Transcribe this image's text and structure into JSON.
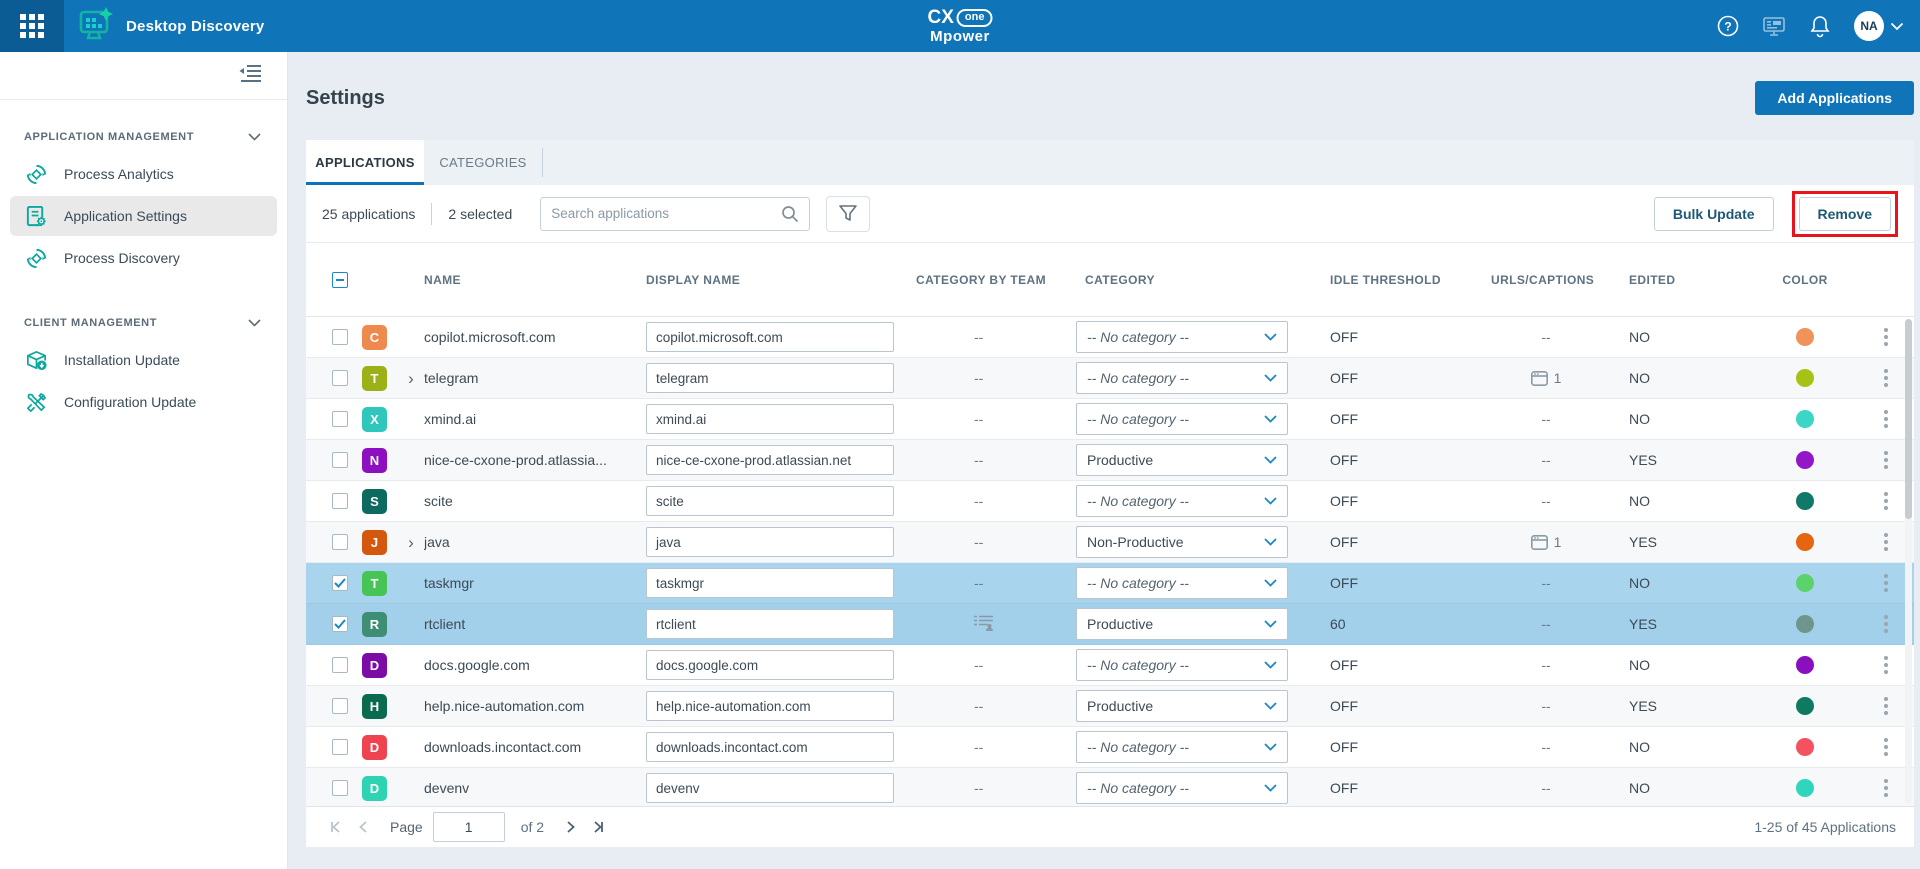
{
  "header": {
    "app_title": "Desktop Discovery",
    "logo": {
      "line1a": "CX",
      "line1b": "one",
      "line2": "Mpower"
    },
    "avatar": "NA",
    "colors": {
      "bar": "#0F74B8",
      "launcher": "#0B5C95"
    }
  },
  "sidebar": {
    "sections": [
      {
        "label": "APPLICATION MANAGEMENT",
        "items": [
          {
            "label": "Process Analytics"
          },
          {
            "label": "Application Settings",
            "active": true
          },
          {
            "label": "Process Discovery"
          }
        ]
      },
      {
        "label": "CLIENT MANAGEMENT",
        "items": [
          {
            "label": "Installation Update"
          },
          {
            "label": "Configuration Update"
          }
        ]
      }
    ]
  },
  "page": {
    "title": "Settings",
    "add_button": "Add Applications"
  },
  "tabs": {
    "applications": "APPLICATIONS",
    "categories": "CATEGORIES"
  },
  "toolbar": {
    "count": "25 applications",
    "selected": "2 selected",
    "search_placeholder": "Search applications",
    "bulk_update": "Bulk Update",
    "remove": "Remove",
    "annotation_color": "#E8131C"
  },
  "table": {
    "columns": [
      "NAME",
      "DISPLAY NAME",
      "CATEGORY BY TEAM",
      "CATEGORY",
      "IDLE THRESHOLD",
      "URLS/CAPTIONS",
      "EDITED",
      "COLOR"
    ],
    "rows": [
      {
        "letter": "C",
        "badge_color": "#EE8A4D",
        "name": "copilot.microsoft.com",
        "expandable": false,
        "display_name": "copilot.microsoft.com",
        "team": "--",
        "team_icon": false,
        "category": "-- No category --",
        "category_placeholder": true,
        "idle": "OFF",
        "urls_count": null,
        "edited": "NO",
        "dot_color": "#F0935B",
        "selected": false
      },
      {
        "letter": "T",
        "badge_color": "#9CB117",
        "name": "telegram",
        "expandable": true,
        "display_name": "telegram",
        "team": "--",
        "team_icon": false,
        "category": "-- No category --",
        "category_placeholder": true,
        "idle": "OFF",
        "urls_count": "1",
        "edited": "NO",
        "dot_color": "#A6C217",
        "selected": false
      },
      {
        "letter": "X",
        "badge_color": "#2FC7BC",
        "name": "xmind.ai",
        "expandable": false,
        "display_name": "xmind.ai",
        "team": "--",
        "team_icon": false,
        "category": "-- No category --",
        "category_placeholder": true,
        "idle": "OFF",
        "urls_count": null,
        "edited": "NO",
        "dot_color": "#3AD6C6",
        "selected": false
      },
      {
        "letter": "N",
        "badge_color": "#8E0FBF",
        "name": "nice-ce-cxone-prod.atlassia...",
        "expandable": false,
        "display_name": "nice-ce-cxone-prod.atlassian.net",
        "team": "--",
        "team_icon": false,
        "category": "Productive",
        "category_placeholder": false,
        "idle": "OFF",
        "urls_count": null,
        "edited": "YES",
        "dot_color": "#9317C9",
        "selected": false
      },
      {
        "letter": "S",
        "badge_color": "#0C6B5E",
        "name": "scite",
        "expandable": false,
        "display_name": "scite",
        "team": "--",
        "team_icon": false,
        "category": "-- No category --",
        "category_placeholder": true,
        "idle": "OFF",
        "urls_count": null,
        "edited": "NO",
        "dot_color": "#12786A",
        "selected": false
      },
      {
        "letter": "J",
        "badge_color": "#D4570E",
        "name": "java",
        "expandable": true,
        "display_name": "java",
        "team": "--",
        "team_icon": false,
        "category": "Non-Productive",
        "category_placeholder": false,
        "idle": "OFF",
        "urls_count": "1",
        "edited": "YES",
        "dot_color": "#E56510",
        "selected": false
      },
      {
        "letter": "T",
        "badge_color": "#46C455",
        "name": "taskmgr",
        "expandable": false,
        "display_name": "taskmgr",
        "team": "--",
        "team_icon": false,
        "category": "-- No category --",
        "category_placeholder": true,
        "idle": "OFF",
        "urls_count": null,
        "edited": "NO",
        "dot_color": "#5CD36A",
        "selected": true
      },
      {
        "letter": "R",
        "badge_color": "#3D8E74",
        "name": "rtclient",
        "expandable": false,
        "display_name": "rtclient",
        "team": "",
        "team_icon": true,
        "category": "Productive",
        "category_placeholder": false,
        "idle": "60",
        "urls_count": null,
        "edited": "YES",
        "dot_color": "#6F958D",
        "selected": true
      },
      {
        "letter": "D",
        "badge_color": "#7B0DA6",
        "name": "docs.google.com",
        "expandable": false,
        "display_name": "docs.google.com",
        "team": "--",
        "team_icon": false,
        "category": "-- No category --",
        "category_placeholder": true,
        "idle": "OFF",
        "urls_count": null,
        "edited": "NO",
        "dot_color": "#8A10BD",
        "selected": false
      },
      {
        "letter": "H",
        "badge_color": "#0B6B4F",
        "name": "help.nice-automation.com",
        "expandable": false,
        "display_name": "help.nice-automation.com",
        "team": "--",
        "team_icon": false,
        "category": "Productive",
        "category_placeholder": false,
        "idle": "OFF",
        "urls_count": null,
        "edited": "YES",
        "dot_color": "#0F7A62",
        "selected": false
      },
      {
        "letter": "D",
        "badge_color": "#EE4450",
        "name": "downloads.incontact.com",
        "expandable": false,
        "display_name": "downloads.incontact.com",
        "team": "--",
        "team_icon": false,
        "category": "-- No category --",
        "category_placeholder": true,
        "idle": "OFF",
        "urls_count": null,
        "edited": "NO",
        "dot_color": "#F4525F",
        "selected": false
      },
      {
        "letter": "D",
        "badge_color": "#2ED3B2",
        "name": "devenv",
        "expandable": false,
        "display_name": "devenv",
        "team": "--",
        "team_icon": false,
        "category": "-- No category --",
        "category_placeholder": true,
        "idle": "OFF",
        "urls_count": null,
        "edited": "NO",
        "dot_color": "#2FD6BC",
        "selected": false
      }
    ]
  },
  "pagination": {
    "page_label": "Page",
    "page_value": "1",
    "of_label": "of 2",
    "range": "1-25 of 45 Applications"
  }
}
